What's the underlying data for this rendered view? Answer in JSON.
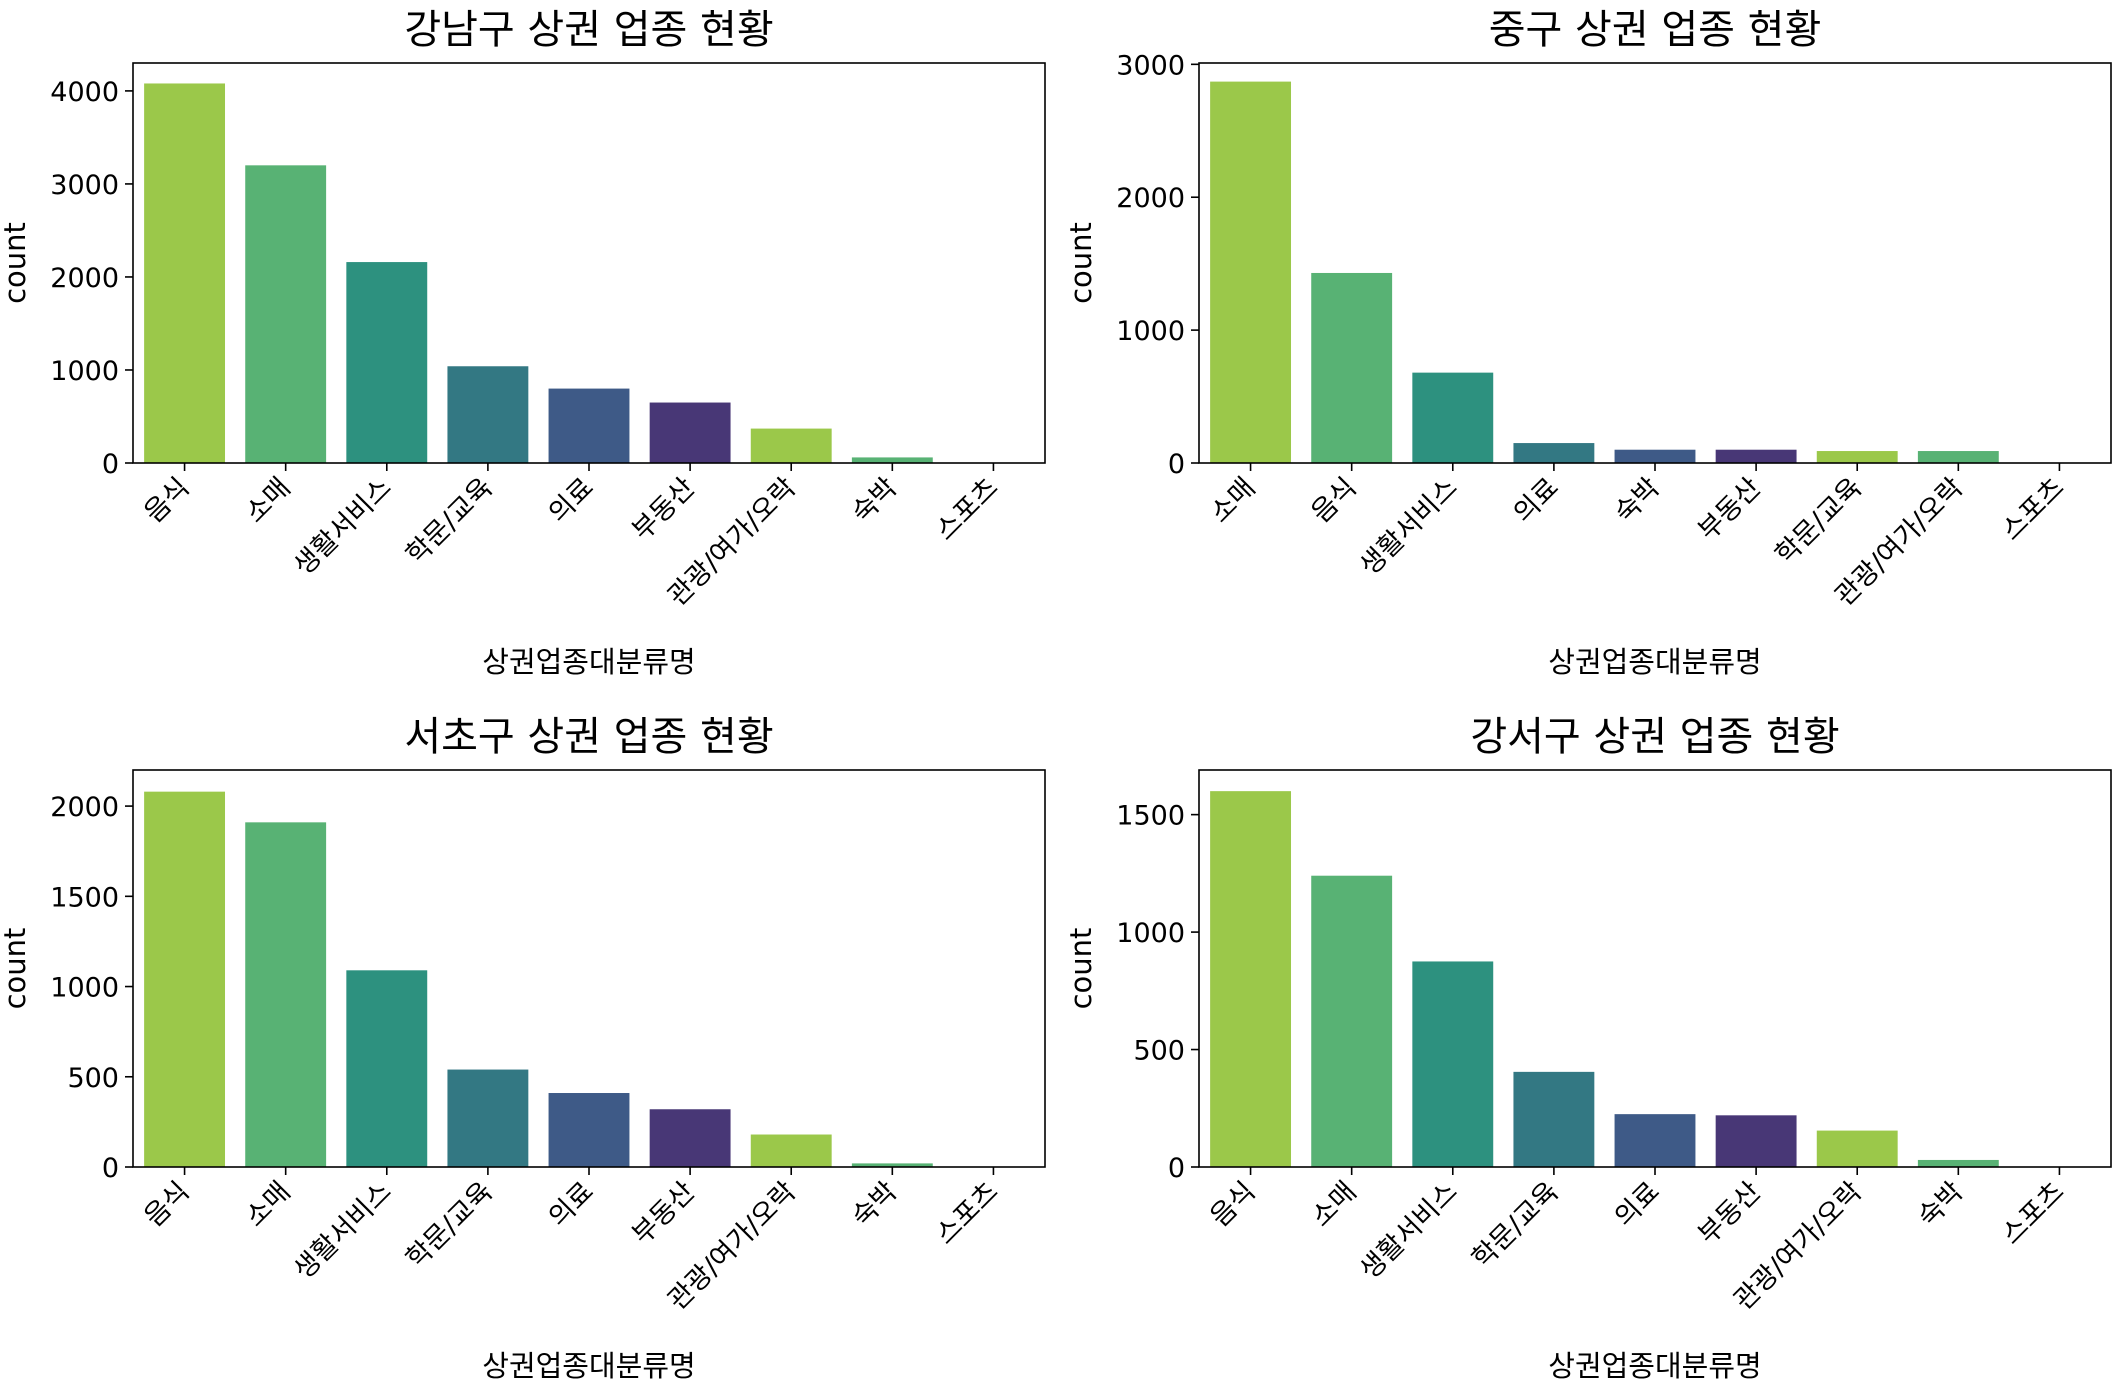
{
  "colors": {
    "palette": [
      "#9bc84a",
      "#58b274",
      "#2d917f",
      "#337883",
      "#3e5a87",
      "#483776"
    ],
    "axis": "#000000",
    "background": "#ffffff"
  },
  "chart_data": [
    {
      "type": "bar",
      "title": "강남구 상권 업종 현황",
      "xlabel": "상권업종대분류명",
      "ylabel": "count",
      "categories": [
        "음식",
        "소매",
        "생활서비스",
        "학문/교육",
        "의료",
        "부동산",
        "관광/여가/오락",
        "숙박",
        "스포츠"
      ],
      "values": [
        4080,
        3200,
        2160,
        1040,
        800,
        650,
        370,
        60,
        5
      ],
      "ylim": [
        0,
        4300
      ],
      "yticks": [
        0,
        1000,
        2000,
        3000,
        4000
      ],
      "grid": false,
      "legend": "none"
    },
    {
      "type": "bar",
      "title": "중구 상권 업종 현황",
      "xlabel": "상권업종대분류명",
      "ylabel": "count",
      "categories": [
        "소매",
        "음식",
        "생활서비스",
        "의료",
        "숙박",
        "부동산",
        "학문/교육",
        "관광/여가/오락",
        "스포츠"
      ],
      "values": [
        2870,
        1430,
        680,
        150,
        100,
        100,
        90,
        90,
        2
      ],
      "ylim": [
        0,
        3010
      ],
      "yticks": [
        0,
        1000,
        2000,
        3000
      ],
      "grid": false,
      "legend": "none"
    },
    {
      "type": "bar",
      "title": "서초구 상권 업종 현황",
      "xlabel": "상권업종대분류명",
      "ylabel": "count",
      "categories": [
        "음식",
        "소매",
        "생활서비스",
        "학문/교육",
        "의료",
        "부동산",
        "관광/여가/오락",
        "숙박",
        "스포츠"
      ],
      "values": [
        2080,
        1910,
        1090,
        540,
        410,
        320,
        180,
        20,
        2
      ],
      "ylim": [
        0,
        2200
      ],
      "yticks": [
        0,
        500,
        1000,
        1500,
        2000
      ],
      "grid": false,
      "legend": "none"
    },
    {
      "type": "bar",
      "title": "강서구 상권 업종 현황",
      "xlabel": "상권업종대분류명",
      "ylabel": "count",
      "categories": [
        "음식",
        "소매",
        "생활서비스",
        "학문/교육",
        "의료",
        "부동산",
        "관광/여가/오락",
        "숙박",
        "스포츠"
      ],
      "values": [
        1600,
        1240,
        875,
        405,
        225,
        220,
        155,
        30,
        2
      ],
      "ylim": [
        0,
        1690
      ],
      "yticks": [
        0,
        500,
        1000,
        1500
      ],
      "grid": false,
      "legend": "none"
    }
  ]
}
